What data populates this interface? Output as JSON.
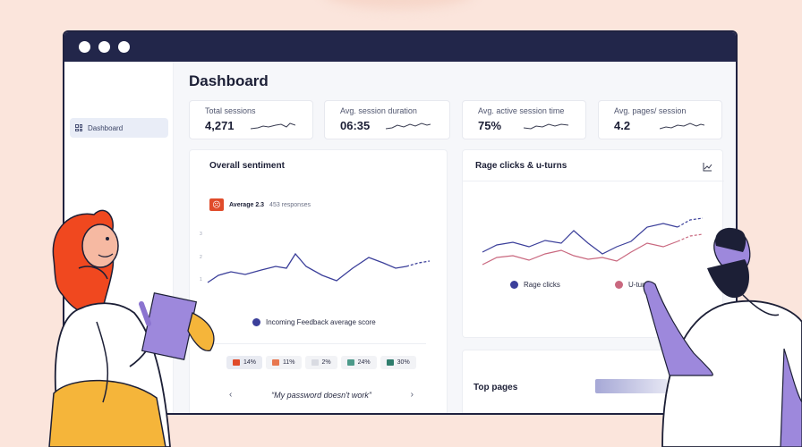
{
  "sidebar": {
    "items": [
      {
        "label": "Dashboard"
      }
    ]
  },
  "main": {
    "title": "Dashboard"
  },
  "stats": [
    {
      "label": "Total sessions",
      "value": "4,271"
    },
    {
      "label": "Avg. session duration",
      "value": "06:35"
    },
    {
      "label": "Avg. active session time",
      "value": "75%"
    },
    {
      "label": "Avg. pages/ session",
      "value": "4.2"
    }
  ],
  "sentiment": {
    "title": "Overall sentiment",
    "average_label": "Average 2.3",
    "responses": "453 responses",
    "legend": "Incoming Feedback average score",
    "percentages": [
      {
        "value": "14%",
        "color": "#e04b2a"
      },
      {
        "value": "11%",
        "color": "#e87850"
      },
      {
        "value": "2%",
        "color": "#d9dbe2"
      },
      {
        "value": "24%",
        "color": "#4c9a8a"
      },
      {
        "value": "30%",
        "color": "#2f7d6d"
      }
    ],
    "quote": "“My password doesn't work”",
    "prev_label": "‹",
    "next_label": "›"
  },
  "rage": {
    "title": "Rage clicks & u-turns",
    "legend_rage": "Rage clicks",
    "legend_uturns": "U-turns",
    "rage_color": "#3b3f9a",
    "uturn_color": "#c9687f"
  },
  "top_pages": {
    "title": "Top pages"
  },
  "colors": {
    "titlebar": "#22264a",
    "accent": "#3b3f9a",
    "background": "#fbe5dc"
  }
}
